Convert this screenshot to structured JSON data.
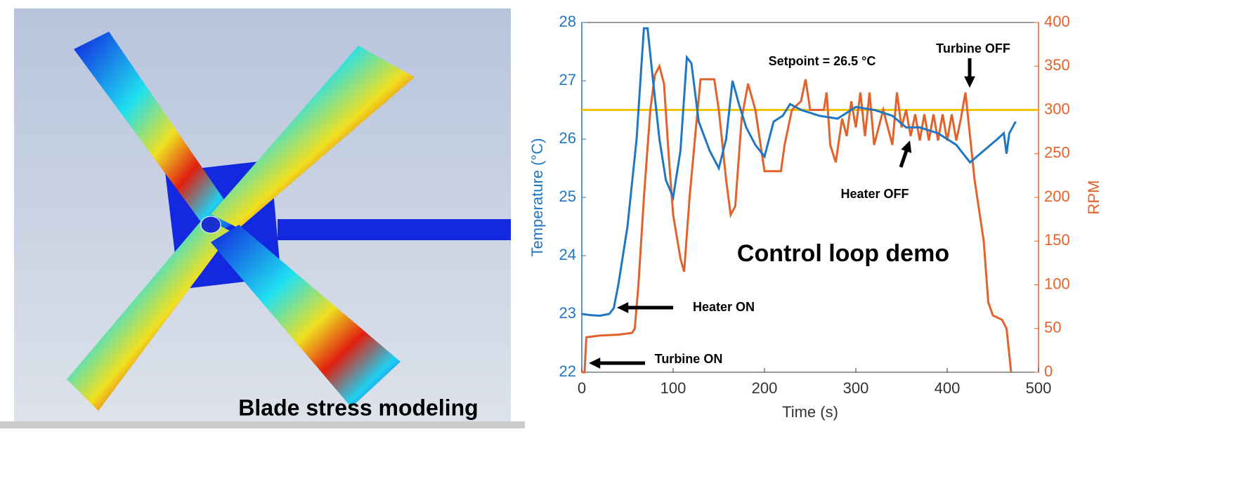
{
  "image_caption": "Blade stress modeling",
  "chart_data": {
    "type": "line",
    "xlabel": "Time (s)",
    "ylabel": "Temperature (°C)",
    "y2label": "RPM",
    "xlim": [
      0,
      500
    ],
    "xticks": [
      0,
      100,
      200,
      300,
      400,
      500
    ],
    "ylim": [
      22,
      28
    ],
    "yticks": [
      22,
      23,
      24,
      25,
      26,
      27,
      28
    ],
    "y2lim": [
      0,
      400
    ],
    "y2ticks": [
      0,
      50,
      100,
      150,
      200,
      250,
      300,
      350,
      400
    ],
    "series": [
      {
        "color": "#1f77c4",
        "axis": "y",
        "x": [
          0,
          10,
          20,
          30,
          35,
          40,
          50,
          60,
          65,
          68,
          72,
          78,
          85,
          92,
          100,
          108,
          115,
          120,
          128,
          140,
          150,
          158,
          165,
          172,
          180,
          190,
          200,
          210,
          220,
          228,
          240,
          260,
          280,
          300,
          320,
          340,
          355,
          370,
          390,
          410,
          420,
          425,
          440,
          455,
          462,
          465,
          468,
          475
        ],
        "values": [
          23.0,
          22.98,
          22.97,
          23.0,
          23.1,
          23.5,
          24.5,
          26.0,
          27.2,
          27.9,
          27.9,
          27.0,
          26.0,
          25.3,
          25.0,
          25.8,
          27.4,
          27.3,
          26.3,
          25.8,
          25.5,
          26.0,
          27.0,
          26.6,
          26.2,
          25.9,
          25.7,
          26.3,
          26.4,
          26.6,
          26.5,
          26.4,
          26.35,
          26.55,
          26.5,
          26.4,
          26.2,
          26.2,
          26.1,
          25.9,
          25.7,
          25.6,
          25.8,
          26.0,
          26.1,
          25.75,
          26.1,
          26.3
        ]
      },
      {
        "color": "#e2622b",
        "axis": "y2",
        "x": [
          0,
          3,
          5,
          20,
          40,
          55,
          58,
          62,
          68,
          75,
          80,
          85,
          90,
          95,
          100,
          108,
          112,
          118,
          125,
          130,
          145,
          150,
          158,
          163,
          168,
          175,
          182,
          190,
          200,
          210,
          218,
          222,
          230,
          240,
          245,
          250,
          265,
          268,
          272,
          278,
          285,
          290,
          295,
          300,
          305,
          310,
          315,
          320,
          330,
          340,
          345,
          350,
          355,
          360,
          365,
          370,
          375,
          380,
          385,
          390,
          395,
          400,
          405,
          410,
          415,
          420,
          425,
          430,
          440,
          445,
          450,
          460,
          465,
          470
        ],
        "values": [
          0,
          0,
          40,
          42,
          43,
          45,
          50,
          100,
          200,
          300,
          340,
          350,
          330,
          250,
          180,
          130,
          115,
          200,
          280,
          335,
          335,
          300,
          220,
          180,
          190,
          290,
          330,
          300,
          230,
          230,
          230,
          260,
          300,
          310,
          335,
          300,
          300,
          320,
          260,
          240,
          290,
          270,
          310,
          280,
          320,
          270,
          320,
          260,
          300,
          260,
          320,
          280,
          300,
          270,
          295,
          265,
          295,
          265,
          295,
          265,
          295,
          265,
          295,
          265,
          290,
          320,
          270,
          220,
          150,
          80,
          65,
          60,
          50,
          0
        ]
      }
    ],
    "hlines": [
      {
        "value": 26.5,
        "color": "#f2c500",
        "axis": "y"
      }
    ],
    "annotations": [
      "Setpoint = 26.5 °C",
      "Turbine OFF",
      "Heater OFF",
      "Heater ON",
      "Turbine ON",
      "Control loop demo"
    ]
  }
}
